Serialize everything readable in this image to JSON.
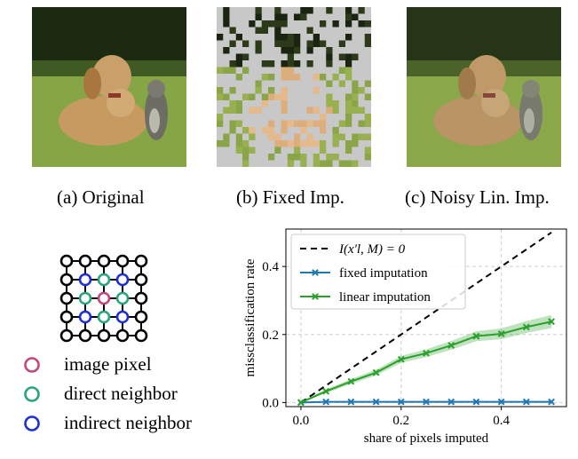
{
  "panels": [
    {
      "id": "a",
      "caption": "(a) Original"
    },
    {
      "id": "b",
      "caption": "(b) Fixed Imp."
    },
    {
      "id": "c",
      "caption": "(c) Noisy Lin. Imp."
    }
  ],
  "neighborhood_legend": {
    "items": [
      {
        "label": "image pixel",
        "color": "#c2467f"
      },
      {
        "label": "direct neighbor",
        "color": "#2aa57a"
      },
      {
        "label": "indirect neighbor",
        "color": "#1f2fd6"
      }
    ]
  },
  "chart_data": {
    "type": "line",
    "title": "",
    "xlabel": "share of pixels imputed",
    "ylabel": "missclassification rate",
    "xlim": [
      -0.03,
      0.53
    ],
    "ylim": [
      -0.012,
      0.51
    ],
    "xticks": [
      0.0,
      0.2,
      0.4
    ],
    "xtick_labels": [
      "0.0",
      "0.2",
      "0.4"
    ],
    "yticks": [
      0.0,
      0.2,
      0.4
    ],
    "ytick_labels": [
      "0.0",
      "0.2",
      "0.4"
    ],
    "grid": true,
    "legend_position": "top-left",
    "series": [
      {
        "name": "I(x'l, M) = 0",
        "style": "dashed",
        "color": "#000000",
        "x": [
          0.0,
          0.5
        ],
        "y": [
          0.0,
          0.5
        ]
      },
      {
        "name": "fixed imputation",
        "color": "#1f77b4",
        "marker": "x",
        "x": [
          0.0,
          0.05,
          0.1,
          0.15,
          0.2,
          0.25,
          0.3,
          0.35,
          0.4,
          0.45,
          0.5
        ],
        "y": [
          0.0,
          0.002,
          0.002,
          0.002,
          0.002,
          0.002,
          0.002,
          0.002,
          0.002,
          0.002,
          0.002
        ]
      },
      {
        "name": "linear imputation",
        "color": "#2ca02c",
        "marker": "x",
        "x": [
          0.0,
          0.05,
          0.1,
          0.15,
          0.2,
          0.25,
          0.3,
          0.35,
          0.4,
          0.45,
          0.5
        ],
        "y": [
          0.0,
          0.033,
          0.062,
          0.088,
          0.127,
          0.145,
          0.168,
          0.195,
          0.202,
          0.222,
          0.238
        ]
      }
    ]
  }
}
